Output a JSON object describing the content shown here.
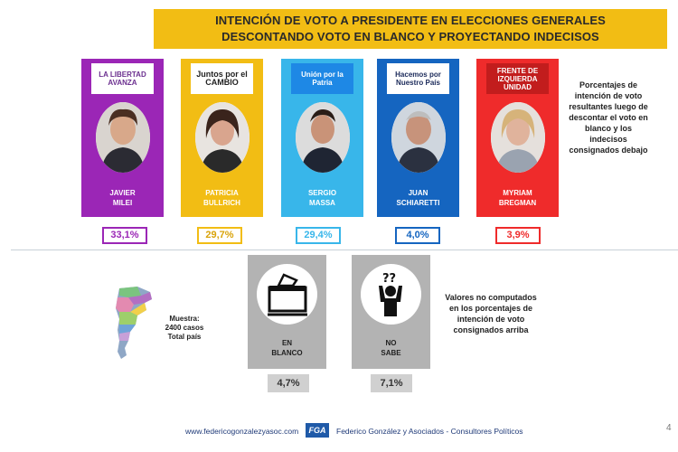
{
  "header": {
    "line1": "INTENCIÓN DE VOTO A PRESIDENTE EN ELECCIONES GENERALES",
    "line2": "DESCONTANDO VOTO EN BLANCO Y PROYECTANDO INDECISOS"
  },
  "candidates": [
    {
      "name": "JAVIER\nMILEI",
      "party_logo": "LA LIBERTAD AVANZA",
      "percentage": "33,1%",
      "color": "#9b26b6"
    },
    {
      "name": "PATRICIA\nBULLRICH",
      "party_logo": "Juntos por el CAMBIO",
      "percentage": "29,7%",
      "color": "#f2bd14"
    },
    {
      "name": "SERGIO\nMASSA",
      "party_logo": "Unión por la Patria",
      "percentage": "29,4%",
      "color": "#38b6ea"
    },
    {
      "name": "JUAN\nSCHIARETTI",
      "party_logo": "Hacemos por Nuestro País",
      "percentage": "4,0%",
      "color": "#1565c0"
    },
    {
      "name": "MYRIAM\nBREGMAN",
      "party_logo": "FRENTE DE IZQUIERDA UNIDAD",
      "percentage": "3,9%",
      "color": "#ef2b2b"
    }
  ],
  "side_note": "Porcentajes de intención de voto resultantes luego de descontar el voto en blanco y los indecisos consignados debajo",
  "sample": {
    "line1": "Muestra:",
    "line2": "2400 casos",
    "line3": "Total país"
  },
  "other_options": [
    {
      "label": "EN\nBLANCO",
      "percentage": "4,7%",
      "icon": "ballot-box-icon"
    },
    {
      "label": "NO\nSABE",
      "percentage": "7,1%",
      "icon": "undecided-person-icon"
    }
  ],
  "note2": "Valores no computados en los porcentajes de intención de voto consignados arriba",
  "footer": {
    "url": "www.federicogonzalezyasoc.com",
    "logo": "FGA",
    "company": "Federico González y Asociados - Consultores Políticos"
  },
  "page_number": "4"
}
